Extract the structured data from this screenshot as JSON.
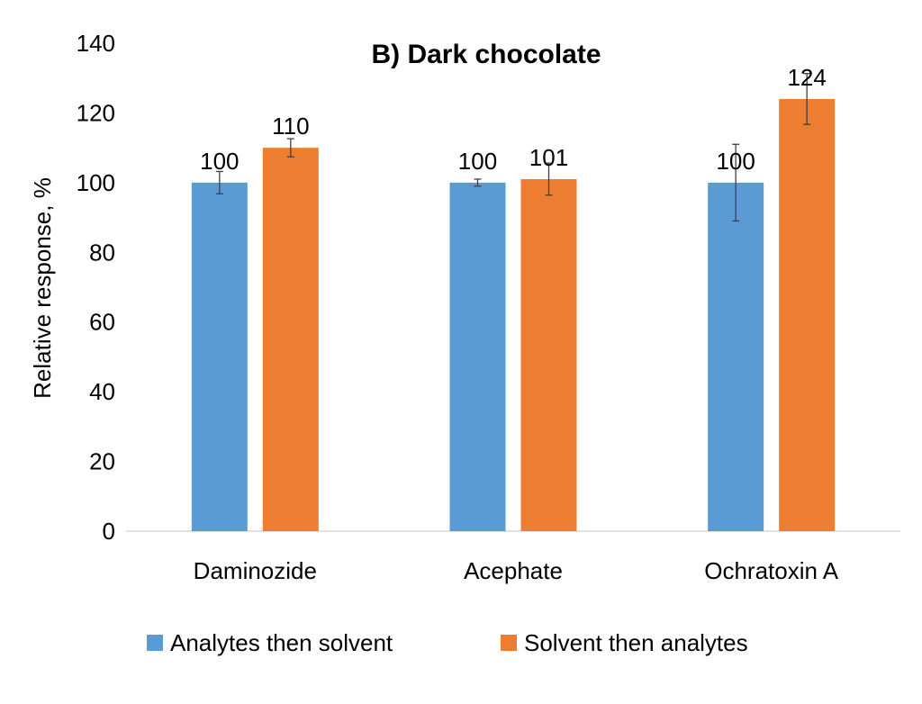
{
  "chart_data": {
    "type": "bar",
    "title": "B) Dark chocolate",
    "xlabel": "",
    "ylabel": "Relative response, %",
    "ylim": [
      0,
      140
    ],
    "yticks": [
      0,
      20,
      40,
      60,
      80,
      100,
      120,
      140
    ],
    "categories": [
      "Daminozide",
      "Acephate",
      "Ochratoxin A"
    ],
    "series": [
      {
        "name": "Analytes then solvent",
        "color": "#5B9BD5",
        "values": [
          100,
          100,
          100
        ],
        "errors": [
          3.2,
          1.0,
          11.0
        ],
        "labels": [
          "100",
          "100",
          "100"
        ]
      },
      {
        "name": "Solvent then analytes",
        "color": "#ED7D31",
        "values": [
          110,
          101,
          124
        ],
        "errors": [
          2.6,
          4.6,
          7.3
        ],
        "labels": [
          "110",
          "101",
          "124"
        ]
      }
    ],
    "legend_position": "bottom",
    "grid": false
  }
}
